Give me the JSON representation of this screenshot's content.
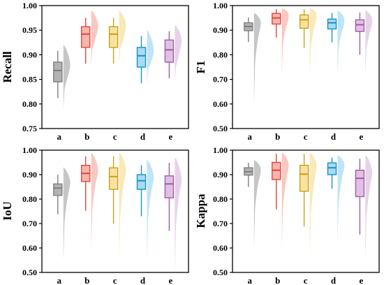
{
  "chart_data": [
    {
      "type": "box",
      "ylabel": "Recall",
      "categories": [
        "a",
        "b",
        "c",
        "d",
        "e"
      ],
      "ylim": [
        0.75,
        1.0
      ],
      "yticks": [
        "0.75",
        "0.80",
        "0.85",
        "0.90",
        "0.95",
        "1.00"
      ],
      "grid": false,
      "series": [
        {
          "color": "#7f7f7f",
          "fill": "#b3b3b3",
          "whislo": 0.812,
          "q1": 0.845,
          "med": 0.868,
          "q3": 0.885,
          "whishi": 0.908,
          "dist_lo": 0.79,
          "dist_mode": 0.88,
          "dist_hi": 0.92
        },
        {
          "color": "#e8433a",
          "fill": "#f7b6ae",
          "whislo": 0.882,
          "q1": 0.915,
          "med": 0.942,
          "q3": 0.957,
          "whishi": 0.975,
          "dist_lo": 0.88,
          "dist_mode": 0.96,
          "dist_hi": 0.99
        },
        {
          "color": "#c9a017",
          "fill": "#f7e2a0",
          "whislo": 0.882,
          "q1": 0.915,
          "med": 0.942,
          "q3": 0.957,
          "whishi": 0.975,
          "dist_lo": 0.88,
          "dist_mode": 0.96,
          "dist_hi": 0.99
        },
        {
          "color": "#1592c8",
          "fill": "#a9dbf1",
          "whislo": 0.842,
          "q1": 0.875,
          "med": 0.898,
          "q3": 0.915,
          "whishi": 0.938,
          "dist_lo": 0.84,
          "dist_mode": 0.91,
          "dist_hi": 0.95
        },
        {
          "color": "#a35aa6",
          "fill": "#dfc2e3",
          "whislo": 0.852,
          "q1": 0.885,
          "med": 0.91,
          "q3": 0.93,
          "whishi": 0.948,
          "dist_lo": 0.84,
          "dist_mode": 0.93,
          "dist_hi": 0.96
        }
      ]
    },
    {
      "type": "box",
      "ylabel": "F1",
      "categories": [
        "a",
        "b",
        "c",
        "d",
        "e"
      ],
      "ylim": [
        0.5,
        1.0
      ],
      "yticks": [
        "0.50",
        "0.60",
        "0.70",
        "0.80",
        "0.90",
        "1.00"
      ],
      "grid": false,
      "series": [
        {
          "color": "#7f7f7f",
          "fill": "#b3b3b3",
          "whislo": 0.852,
          "q1": 0.898,
          "med": 0.915,
          "q3": 0.93,
          "whishi": 0.952,
          "dist_lo": 0.6,
          "dist_mode": 0.93,
          "dist_hi": 0.97
        },
        {
          "color": "#e8433a",
          "fill": "#f7b6ae",
          "whislo": 0.87,
          "q1": 0.925,
          "med": 0.95,
          "q3": 0.968,
          "whishi": 0.985,
          "dist_lo": 0.72,
          "dist_mode": 0.96,
          "dist_hi": 0.99
        },
        {
          "color": "#c9a017",
          "fill": "#f7e2a0",
          "whislo": 0.828,
          "q1": 0.908,
          "med": 0.942,
          "q3": 0.962,
          "whishi": 0.985,
          "dist_lo": 0.7,
          "dist_mode": 0.96,
          "dist_hi": 0.99
        },
        {
          "color": "#1592c8",
          "fill": "#a9dbf1",
          "whislo": 0.85,
          "q1": 0.905,
          "med": 0.93,
          "q3": 0.945,
          "whishi": 0.97,
          "dist_lo": 0.72,
          "dist_mode": 0.94,
          "dist_hi": 0.98
        },
        {
          "color": "#a35aa6",
          "fill": "#dfc2e3",
          "whislo": 0.8,
          "q1": 0.895,
          "med": 0.922,
          "q3": 0.942,
          "whishi": 0.972,
          "dist_lo": 0.72,
          "dist_mode": 0.94,
          "dist_hi": 0.98
        }
      ]
    },
    {
      "type": "box",
      "ylabel": "IoU",
      "categories": [
        "a",
        "b",
        "c",
        "d",
        "e"
      ],
      "ylim": [
        0.5,
        1.0
      ],
      "yticks": [
        "0.50",
        "0.60",
        "0.70",
        "0.80",
        "0.90",
        "1.00"
      ],
      "grid": false,
      "series": [
        {
          "color": "#7f7f7f",
          "fill": "#b3b3b3",
          "whislo": 0.738,
          "q1": 0.815,
          "med": 0.845,
          "q3": 0.862,
          "whishi": 0.9,
          "dist_lo": 0.55,
          "dist_mode": 0.87,
          "dist_hi": 0.93
        },
        {
          "color": "#e8433a",
          "fill": "#f7b6ae",
          "whislo": 0.752,
          "q1": 0.872,
          "med": 0.905,
          "q3": 0.938,
          "whishi": 0.975,
          "dist_lo": 0.6,
          "dist_mode": 0.92,
          "dist_hi": 0.99
        },
        {
          "color": "#c9a017",
          "fill": "#f7e2a0",
          "whislo": 0.7,
          "q1": 0.84,
          "med": 0.892,
          "q3": 0.928,
          "whishi": 0.975,
          "dist_lo": 0.55,
          "dist_mode": 0.92,
          "dist_hi": 0.99
        },
        {
          "color": "#1592c8",
          "fill": "#a9dbf1",
          "whislo": 0.73,
          "q1": 0.84,
          "med": 0.875,
          "q3": 0.9,
          "whishi": 0.938,
          "dist_lo": 0.55,
          "dist_mode": 0.89,
          "dist_hi": 0.96
        },
        {
          "color": "#a35aa6",
          "fill": "#dfc2e3",
          "whislo": 0.67,
          "q1": 0.805,
          "med": 0.862,
          "q3": 0.895,
          "whishi": 0.948,
          "dist_lo": 0.5,
          "dist_mode": 0.88,
          "dist_hi": 0.97
        }
      ]
    },
    {
      "type": "box",
      "ylabel": "Kappa",
      "categories": [
        "a",
        "b",
        "c",
        "d",
        "e"
      ],
      "ylim": [
        0.5,
        1.0
      ],
      "yticks": [
        "0.50",
        "0.60",
        "0.70",
        "0.80",
        "0.90",
        "1.00"
      ],
      "grid": false,
      "series": [
        {
          "color": "#7f7f7f",
          "fill": "#b3b3b3",
          "whislo": 0.85,
          "q1": 0.898,
          "med": 0.912,
          "q3": 0.928,
          "whishi": 0.948,
          "dist_lo": 0.6,
          "dist_mode": 0.92,
          "dist_hi": 0.96
        },
        {
          "color": "#e8433a",
          "fill": "#f7b6ae",
          "whislo": 0.758,
          "q1": 0.88,
          "med": 0.918,
          "q3": 0.95,
          "whishi": 0.985,
          "dist_lo": 0.6,
          "dist_mode": 0.94,
          "dist_hi": 0.99
        },
        {
          "color": "#c9a017",
          "fill": "#f7e2a0",
          "whislo": 0.688,
          "q1": 0.832,
          "med": 0.902,
          "q3": 0.938,
          "whishi": 0.985,
          "dist_lo": 0.55,
          "dist_mode": 0.94,
          "dist_hi": 0.99
        },
        {
          "color": "#1592c8",
          "fill": "#a9dbf1",
          "whislo": 0.842,
          "q1": 0.9,
          "med": 0.928,
          "q3": 0.948,
          "whishi": 0.97,
          "dist_lo": 0.62,
          "dist_mode": 0.94,
          "dist_hi": 0.98
        },
        {
          "color": "#a35aa6",
          "fill": "#dfc2e3",
          "whislo": 0.655,
          "q1": 0.81,
          "med": 0.885,
          "q3": 0.918,
          "whishi": 0.965,
          "dist_lo": 0.55,
          "dist_mode": 0.91,
          "dist_hi": 0.98
        }
      ]
    }
  ]
}
